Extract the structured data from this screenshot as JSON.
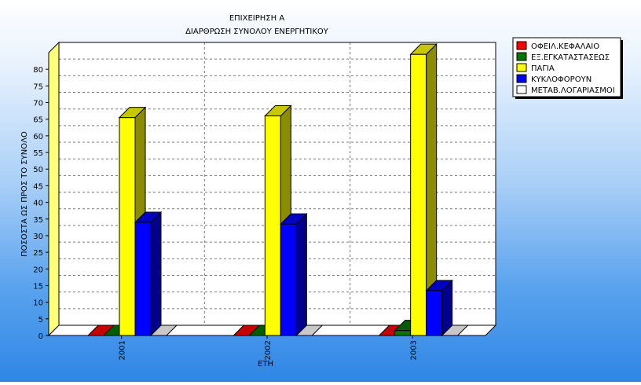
{
  "chart_data": {
    "type": "bar",
    "title": "ΕΠΙΧΕΙΡΗΣΗ Α",
    "subtitle": "ΔΙΑΡΘΡΩΣΗ ΣΥΝΟΛΟΥ ΕΝΕΡΓΗΤΙΚΟΥ",
    "xlabel": "ΕΤΗ",
    "ylabel": "ΠΟΣΟΣΤΑ ΩΣ ΠΡΟΣ ΤΟ ΣΥΝΟΛΟ",
    "categories": [
      "2001",
      "2002",
      "2003"
    ],
    "ylim": [
      0,
      85
    ],
    "yticks": [
      0,
      5,
      10,
      15,
      20,
      25,
      30,
      35,
      40,
      45,
      50,
      55,
      60,
      65,
      70,
      75,
      80
    ],
    "grid": true,
    "legend_position": "top-right",
    "three_d": true,
    "series": [
      {
        "name": "ΟΦΕΙΛ.ΚΕΦΑΛΑΙΟ",
        "color": "#ff0000",
        "values": [
          0,
          0,
          0
        ]
      },
      {
        "name": "ΕΞ.ΕΓΚΑΤΑΣΤΑΣΕΩΣ",
        "color": "#007800",
        "values": [
          0,
          0,
          1.5
        ]
      },
      {
        "name": "ΠΑΓΙΑ",
        "color": "#ffff00",
        "values": [
          65.5,
          66,
          84.5
        ]
      },
      {
        "name": "ΚΥΚΛΟΦΟΡΟΥΝ",
        "color": "#0000ff",
        "values": [
          34,
          33.5,
          13.5
        ]
      },
      {
        "name": "ΜΕΤΑΒ.ΛΟΓΑΡΙΑΣΜΟΙ",
        "color": "#ffffff",
        "values": [
          0,
          0,
          0
        ]
      }
    ]
  }
}
